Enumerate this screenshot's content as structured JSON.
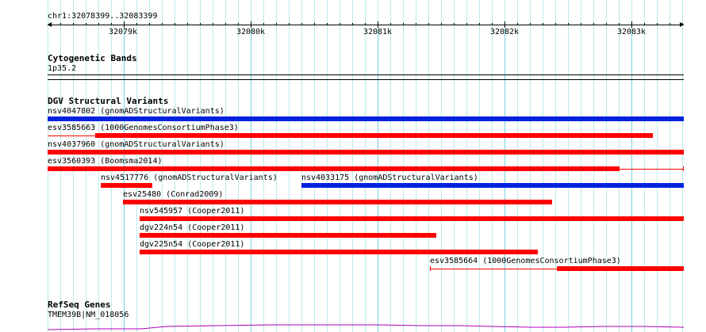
{
  "location": "chr1:32078399..32083399",
  "ruler": {
    "ticks": [
      "32079k",
      "32080k",
      "32081k",
      "32082k",
      "32083k"
    ]
  },
  "tracks": {
    "cytogenetic": {
      "title": "Cytogenetic Bands",
      "band": "1p35.2"
    },
    "dgv": {
      "title": "DGV Structural Variants",
      "variants": [
        {
          "label": "nsv4047802 (gnomADStructuralVariants)",
          "color": "#0022dd"
        },
        {
          "label": "esv3585663 (1000GenomesConsortiumPhase3)",
          "color": "#ff0000"
        },
        {
          "label": "nsv4037960 (gnomADStructuralVariants)",
          "color": "#ff0000"
        },
        {
          "label": "esv3560393 (Boomsma2014)",
          "color": "#ff0000"
        },
        {
          "label": "nsv4517776 (gnomADStructuralVariants)",
          "color": "#ff0000"
        },
        {
          "label": "nsv4033175 (gnomADStructuralVariants)",
          "color": "#0022dd"
        },
        {
          "label": "esv25480 (Conrad2009)",
          "color": "#ff0000"
        },
        {
          "label": "nsv545957 (Cooper2011)",
          "color": "#ff0000"
        },
        {
          "label": "dgv224n54 (Cooper2011)",
          "color": "#ff0000"
        },
        {
          "label": "dgv225n54 (Cooper2011)",
          "color": "#ff0000"
        },
        {
          "label": "esv3585664 (1000GenomesConsortiumPhase3)",
          "color": "#ff0000"
        }
      ]
    },
    "refseq": {
      "title": "RefSeq Genes",
      "gene": "TMEM39B|NM_018056",
      "color": "#b000b0"
    }
  }
}
